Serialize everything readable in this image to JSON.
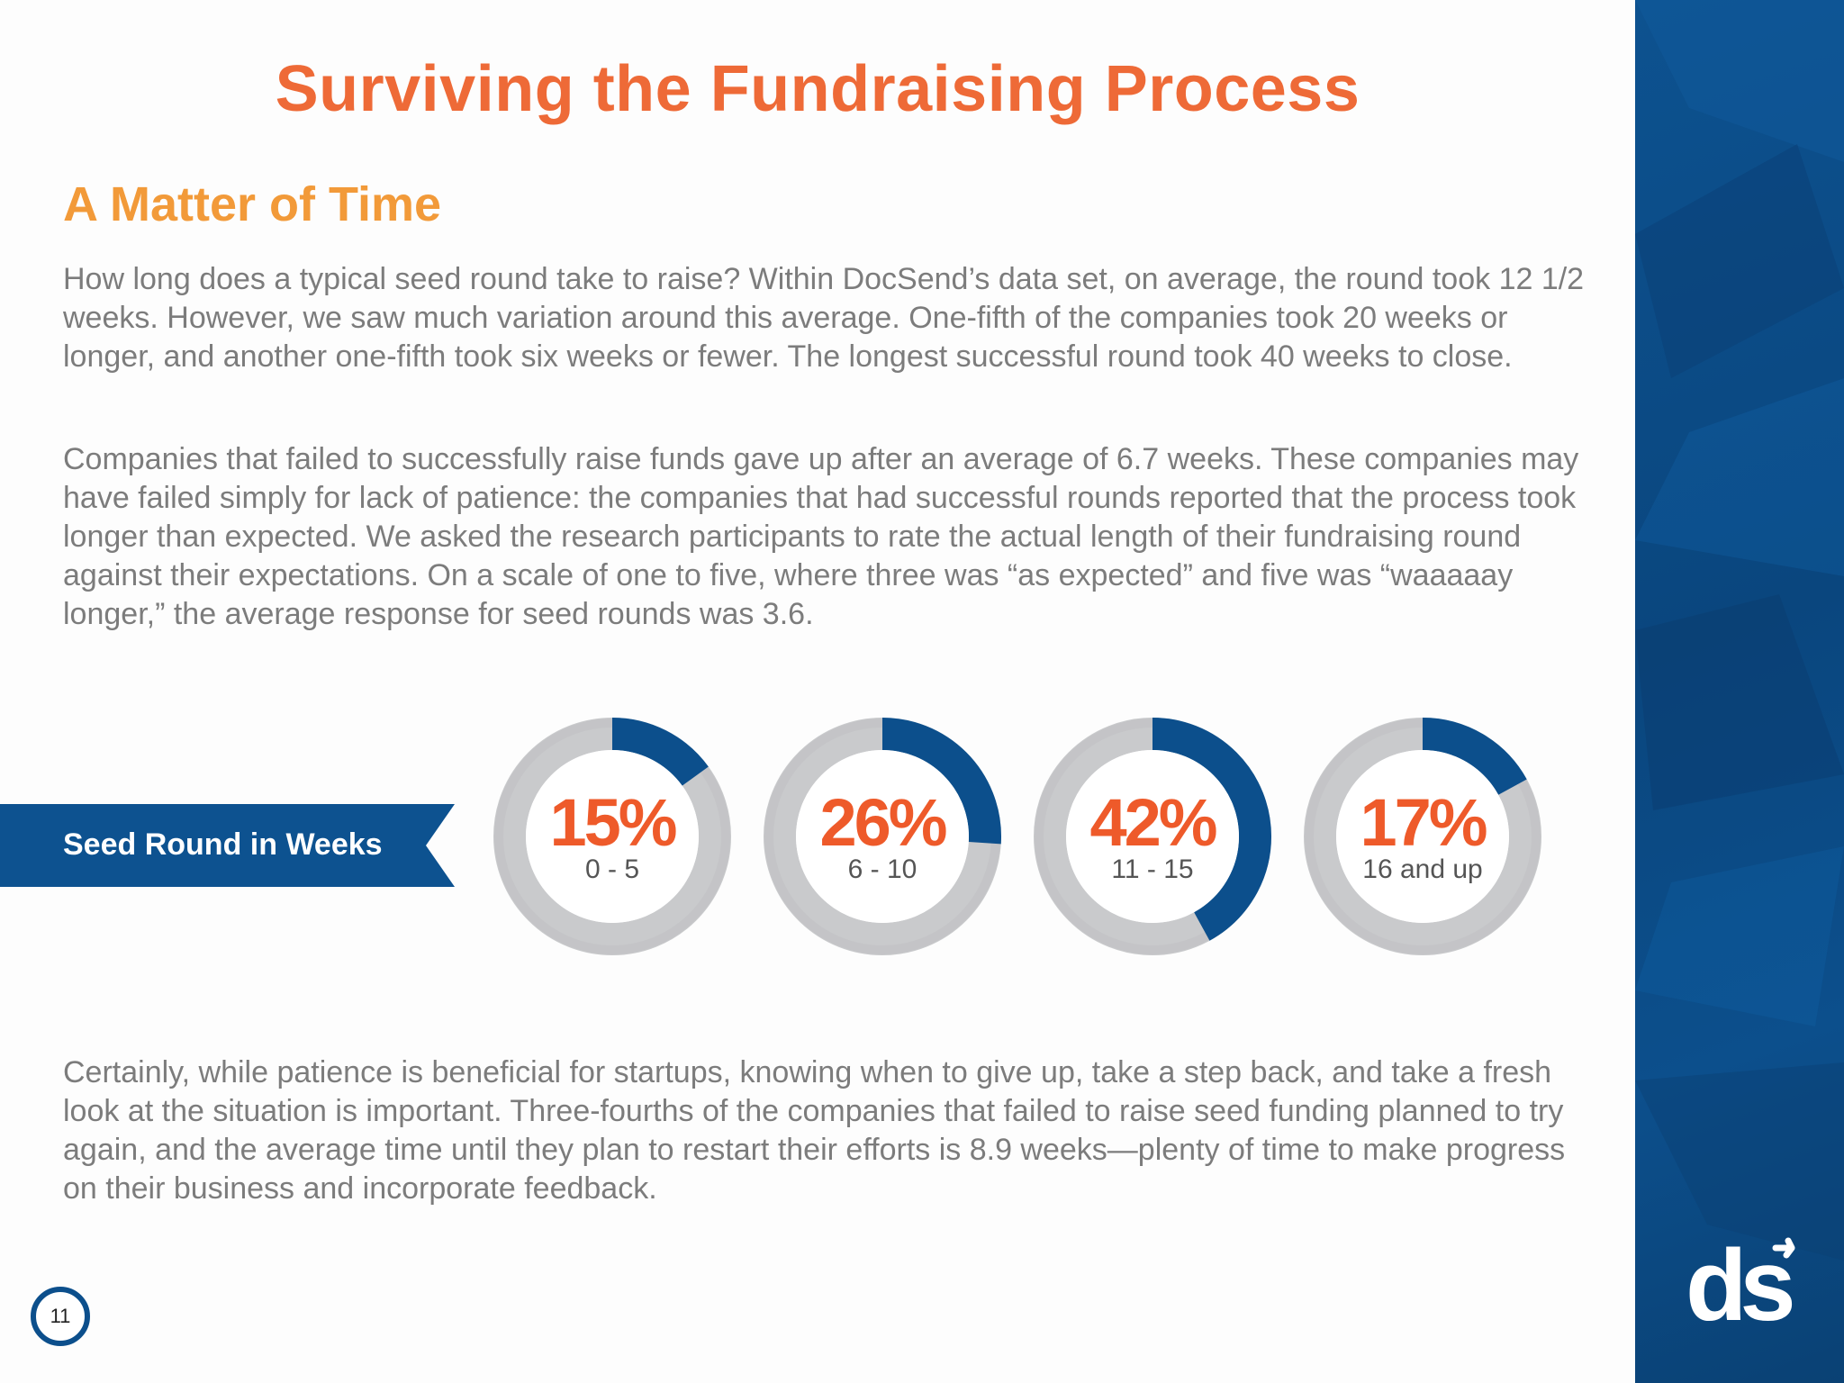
{
  "title": "Surviving the Fundraising Process",
  "subtitle": "A Matter of Time",
  "paragraphs": {
    "p1": "How long does a typical seed round take to raise? Within DocSend’s data set, on average, the round took 12 1/2 weeks. However, we saw much variation around this average. One-fifth of the companies took 20 weeks or longer, and another one-fifth took six weeks or fewer. The longest successful round took 40 weeks to close.",
    "p2": "Companies that failed to successfully raise funds gave up after an average of 6.7 weeks. These companies may have failed simply for lack of patience: the companies that had successful rounds reported that the process took longer than expected. We asked the research participants to rate the actual length of their fundraising round against their expectations. On a scale of one to five, where three was “as expected” and five was “waaaaay longer,” the average response for seed rounds was 3.6.",
    "p3": "Certainly, while patience is beneficial for startups, knowing when to give up, take a step back, and take a fresh look at the situation is important. Three-fourths of the companies that failed to raise seed funding planned to try again, and the average time until they plan to restart their efforts is 8.9 weeks—plenty of time to make progress on their business and incorporate feedback."
  },
  "banner": {
    "label": "Seed Round in Weeks"
  },
  "donuts": [
    {
      "percent_label": "15%",
      "range_label": "0 - 5"
    },
    {
      "percent_label": "26%",
      "range_label": "6 - 10"
    },
    {
      "percent_label": "42%",
      "range_label": "11 - 15"
    },
    {
      "percent_label": "17%",
      "range_label": "16 and up"
    }
  ],
  "chart_data": {
    "type": "pie",
    "title": "",
    "categories": [
      "0 - 5",
      "6 - 10",
      "11 - 15",
      "16 and up"
    ],
    "values": [
      15,
      26,
      42,
      17
    ],
    "unit": "%"
  },
  "page_number": "11",
  "logo": {
    "name": "docsend-logo",
    "text": "ds"
  },
  "colors": {
    "title": "#ee6a37",
    "subtitle": "#f29a39",
    "percent": "#ee5a2a",
    "brand_blue": "#0c4f8c",
    "ring_gray": "#c9cacc",
    "body_text": "#7c7c7c"
  }
}
